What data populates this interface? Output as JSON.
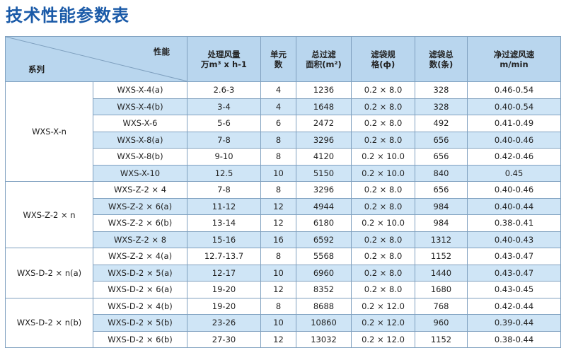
{
  "title": "技术性能参数表",
  "header": {
    "corner_top": "性能",
    "corner_bottom": "系列",
    "col_airflow": [
      "处理风量",
      "万m³ x h-1"
    ],
    "col_units": [
      "单元",
      "数"
    ],
    "col_area": [
      "总过滤",
      "面积(m²)"
    ],
    "col_bag_spec": [
      "滤袋规",
      "格(ф)"
    ],
    "col_bag_count": [
      "滤袋总",
      "数(条)"
    ],
    "col_velocity": [
      "净过滤风速",
      "m/min"
    ]
  },
  "groups": [
    {
      "series": "WXS-X-n",
      "rows": [
        {
          "model": "WXS-X-4(a)",
          "airflow": "2.6-3",
          "units": "4",
          "area": "1236",
          "bag_spec": "0.2 × 8.0",
          "bag_count": "328",
          "velocity": "0.46-0.54"
        },
        {
          "model": "WXS-X-4(b)",
          "airflow": "3-4",
          "units": "4",
          "area": "1648",
          "bag_spec": "0.2 × 8.0",
          "bag_count": "328",
          "velocity": "0.40-0.54"
        },
        {
          "model": "WXS-X-6",
          "airflow": "5-6",
          "units": "6",
          "area": "2472",
          "bag_spec": "0.2 × 8.0",
          "bag_count": "492",
          "velocity": "0.41-0.49"
        },
        {
          "model": "WXS-X-8(a)",
          "airflow": "7-8",
          "units": "8",
          "area": "3296",
          "bag_spec": "0.2 × 8.0",
          "bag_count": "656",
          "velocity": "0.40-0.46"
        },
        {
          "model": "WXS-X-8(b)",
          "airflow": "9-10",
          "units": "8",
          "area": "4120",
          "bag_spec": "0.2 × 10.0",
          "bag_count": "656",
          "velocity": "0.42-0.46"
        },
        {
          "model": "WXS-X-10",
          "airflow": "12.5",
          "units": "10",
          "area": "5150",
          "bag_spec": "0.2 × 10.0",
          "bag_count": "840",
          "velocity": "0.45"
        }
      ]
    },
    {
      "series": "WXS-Z-2 × n",
      "rows": [
        {
          "model": "WXS-Z-2 × 4",
          "airflow": "7-8",
          "units": "8",
          "area": "3296",
          "bag_spec": "0.2 × 8.0",
          "bag_count": "656",
          "velocity": "0.40-0.46"
        },
        {
          "model": "WXS-Z-2 × 6(a)",
          "airflow": "11-12",
          "units": "12",
          "area": "4944",
          "bag_spec": "0.2 × 8.0",
          "bag_count": "984",
          "velocity": "0.40-0.44"
        },
        {
          "model": "WXS-Z-2 × 6(b)",
          "airflow": "13-14",
          "units": "12",
          "area": "6180",
          "bag_spec": "0.2 × 10.0",
          "bag_count": "984",
          "velocity": "0.38-0.41"
        },
        {
          "model": "WXS-Z-2 × 8",
          "airflow": "15-16",
          "units": "16",
          "area": "6592",
          "bag_spec": "0.2 × 8.0",
          "bag_count": "1312",
          "velocity": "0.40-0.43"
        }
      ]
    },
    {
      "series": "WXS-D-2 × n(a)",
      "rows": [
        {
          "model": "WXS-Z-2 × 4(a)",
          "airflow": "12.7-13.7",
          "units": "8",
          "area": "5568",
          "bag_spec": "0.2 × 8.0",
          "bag_count": "1152",
          "velocity": "0.43-0.47"
        },
        {
          "model": "WXS-D-2 × 5(a)",
          "airflow": "12-17",
          "units": "10",
          "area": "6960",
          "bag_spec": "0.2 × 8.0",
          "bag_count": "1440",
          "velocity": "0.43-0.47"
        },
        {
          "model": "WXS-D-2 × 6(a)",
          "airflow": "19-20",
          "units": "12",
          "area": "8352",
          "bag_spec": "0.2 × 8.0",
          "bag_count": "1680",
          "velocity": "0.43-0.45"
        }
      ]
    },
    {
      "series": "WXS-D-2 × n(b)",
      "rows": [
        {
          "model": "WXS-D-2 × 4(b)",
          "airflow": "19-20",
          "units": "8",
          "area": "8688",
          "bag_spec": "0.2 × 12.0",
          "bag_count": "768",
          "velocity": "0.42-0.44"
        },
        {
          "model": "WXS-D-2 × 5(b)",
          "airflow": "23-26",
          "units": "10",
          "area": "10860",
          "bag_spec": "0.2 × 12.0",
          "bag_count": "960",
          "velocity": "0.39-0.44"
        },
        {
          "model": "WXS-D-2 × 6(b)",
          "airflow": "27-30",
          "units": "12",
          "area": "13032",
          "bag_spec": "0.2 × 12.0",
          "bag_count": "1152",
          "velocity": "0.38-0.44"
        }
      ]
    }
  ],
  "colors": {
    "title": "#1a5aa8",
    "header_bg": "#b9d6ee",
    "stripe_bg": "#cfe5f6",
    "border": "#7fa0bf"
  }
}
